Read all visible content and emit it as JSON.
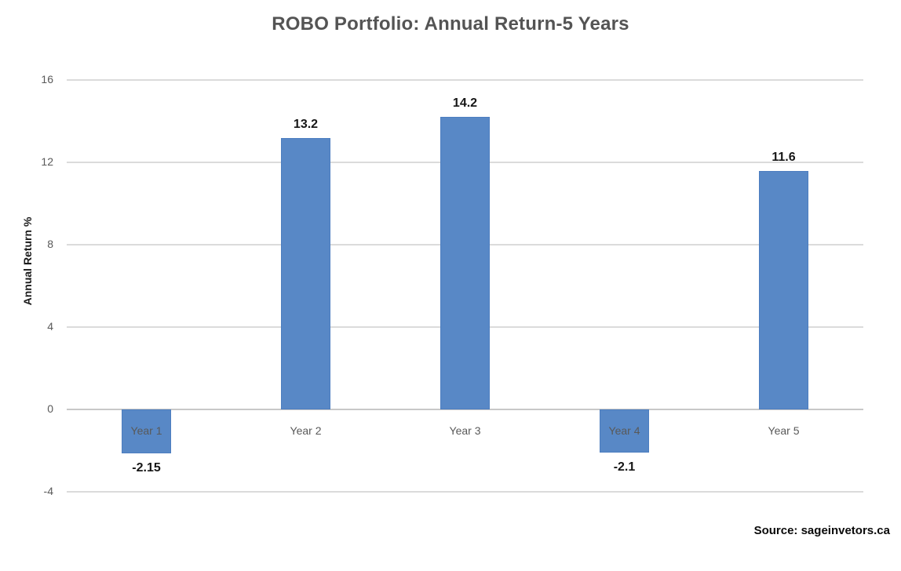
{
  "source_note": "Source: sageinvetors.ca",
  "chart_data": {
    "type": "bar",
    "title": "ROBO Portfolio: Annual Return-5 Years",
    "categories": [
      "Year 1",
      "Year 2",
      "Year 3",
      "Year 4",
      "Year 5"
    ],
    "values": [
      -2.15,
      13.2,
      14.2,
      -2.1,
      11.6
    ],
    "data_labels": [
      "-2.15",
      "13.2",
      "14.2",
      "-2.1",
      "11.6"
    ],
    "xlabel": "",
    "ylabel": "Annual Return %",
    "ylim": [
      -4,
      16
    ],
    "yticks": [
      16,
      12,
      8,
      4,
      0,
      -4
    ],
    "grid": true,
    "legend": false,
    "bar_color": "#5888c6",
    "colors": {
      "title": "#545454",
      "axis_tick_labels": "#595959",
      "category_labels": "#595959",
      "data_labels": "#161616",
      "gridline": "#dbdbdb",
      "zero_line": "#c8c8c8",
      "background": "#ffffff"
    }
  }
}
